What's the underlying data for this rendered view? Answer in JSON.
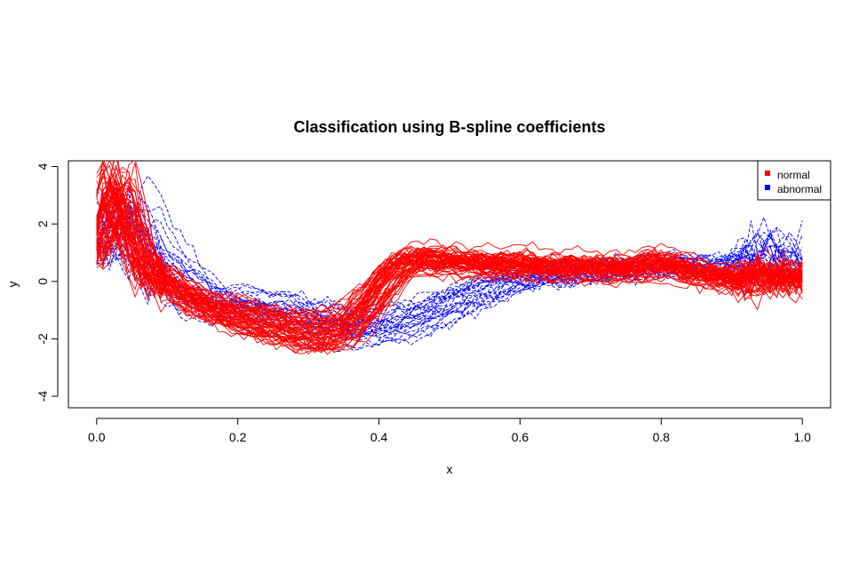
{
  "chart_data": {
    "type": "line",
    "title": "Classification using B-spline coefficients",
    "xlabel": "x",
    "ylabel": "y",
    "xlim": [
      -0.04,
      1.04
    ],
    "ylim": [
      -4.4,
      4.2
    ],
    "x_ticks": [
      0.0,
      0.2,
      0.4,
      0.6,
      0.8,
      1.0
    ],
    "x_tick_labels": [
      "0.0",
      "0.2",
      "0.4",
      "0.6",
      "0.8",
      "1.0"
    ],
    "y_ticks": [
      -4,
      -2,
      0,
      2,
      4
    ],
    "y_tick_labels": [
      "-4",
      "-2",
      "0",
      "2",
      "4"
    ],
    "grid": false,
    "legend": {
      "placement": "top-right",
      "entries": [
        {
          "label": "normal",
          "color": "#ff0000"
        },
        {
          "label": "abnormal",
          "color": "#0000ff"
        }
      ]
    },
    "x": [
      0.0,
      0.02,
      0.03,
      0.05,
      0.07,
      0.1,
      0.15,
      0.2,
      0.25,
      0.3,
      0.35,
      0.38,
      0.42,
      0.45,
      0.5,
      0.55,
      0.6,
      0.65,
      0.7,
      0.75,
      0.8,
      0.85,
      0.9,
      0.93,
      0.96,
      0.98,
      1.0
    ],
    "series": [
      {
        "class": "normal",
        "color": "#ff0000",
        "style": "solid",
        "count": 60,
        "values": [
          1.2,
          2.8,
          3.5,
          1.8,
          0.5,
          0.0,
          -0.8,
          -1.2,
          -1.5,
          -1.8,
          -1.7,
          -1.0,
          0.3,
          0.8,
          0.7,
          0.6,
          0.6,
          0.5,
          0.5,
          0.4,
          0.7,
          0.3,
          0.1,
          0.1,
          0.3,
          0.0,
          0.2
        ]
      },
      {
        "class": "abnormal",
        "color": "#0000ff",
        "style": "dashed",
        "count": 25,
        "values": [
          1.0,
          2.2,
          2.6,
          2.0,
          1.2,
          0.5,
          -0.6,
          -0.8,
          -0.9,
          -1.2,
          -1.5,
          -1.6,
          -1.5,
          -1.3,
          -0.8,
          -0.3,
          0.1,
          0.2,
          0.3,
          0.4,
          0.5,
          0.5,
          0.5,
          0.6,
          1.5,
          0.6,
          0.3
        ]
      }
    ]
  }
}
